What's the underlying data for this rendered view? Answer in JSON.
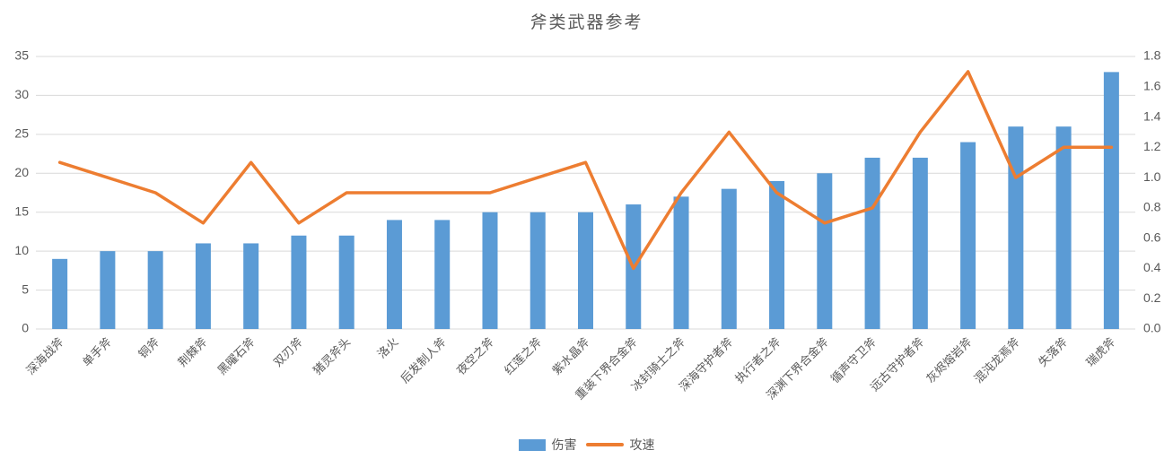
{
  "title": "斧类武器参考",
  "colors": {
    "bar": "#5B9BD5",
    "line": "#ED7D31",
    "grid": "#D9D9D9",
    "axis_text": "#595959",
    "title_text": "#595959"
  },
  "chart_data": {
    "type": "bar",
    "subtype": "bar-line-combo",
    "title": "斧类武器参考",
    "xlabel": "",
    "ylabel": "",
    "grid": true,
    "legend_position": "bottom",
    "categories": [
      "深海战斧",
      "单手斧",
      "铜斧",
      "荆棘斧",
      "黑曜石斧",
      "双刃斧",
      "猪灵斧头",
      "洛火",
      "后发制人斧",
      "夜空之斧",
      "红莲之斧",
      "紫水晶斧",
      "重装下界合金斧",
      "冰封骑士之斧",
      "深海守护者斧",
      "执行者之斧",
      "深渊下界合金斧",
      "循声守卫斧",
      "远古守护者斧",
      "灰烬熔岩斧",
      "混沌龙焉斧",
      "失落斧",
      "瑞虎斧"
    ],
    "series": [
      {
        "name": "伤害",
        "type": "bar",
        "axis": "left",
        "color": "#5B9BD5",
        "values": [
          9,
          10,
          10,
          11,
          11,
          12,
          12,
          14,
          14,
          15,
          15,
          15,
          16,
          17,
          18,
          19,
          20,
          22,
          22,
          24,
          26,
          26,
          33
        ]
      },
      {
        "name": "攻速",
        "type": "line",
        "axis": "right",
        "color": "#ED7D31",
        "values": [
          1.1,
          1.0,
          0.9,
          0.7,
          1.1,
          0.7,
          0.9,
          0.9,
          0.9,
          0.9,
          1.0,
          1.1,
          0.4,
          0.9,
          1.3,
          0.9,
          0.7,
          0.8,
          1.3,
          1.7,
          1.0,
          1.2,
          1.2
        ]
      }
    ],
    "left_axis": {
      "min": 0,
      "max": 35,
      "step": 5,
      "ticks": [
        "0",
        "5",
        "10",
        "15",
        "20",
        "25",
        "30",
        "35"
      ]
    },
    "right_axis": {
      "min": 0.0,
      "max": 1.8,
      "step": 0.2,
      "decimals": 1,
      "ticks": [
        "0.0",
        "0.2",
        "0.4",
        "0.6",
        "0.8",
        "1.0",
        "1.2",
        "1.4",
        "1.6",
        "1.8"
      ]
    }
  }
}
